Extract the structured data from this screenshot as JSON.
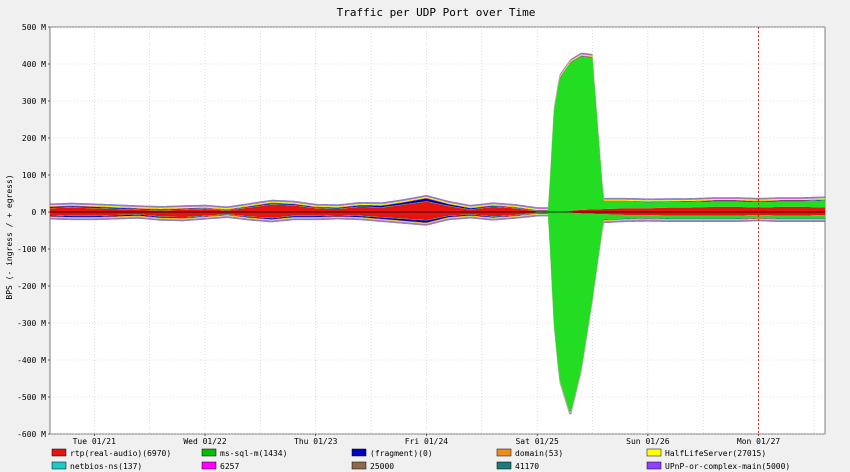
{
  "chart_data": {
    "type": "area",
    "title": "Traffic per UDP Port over Time",
    "ylabel": "BPS (- ingress / + egress)",
    "xlabel": "",
    "ylim": [
      -600,
      500
    ],
    "y_unit": "M",
    "y_ticks": [
      500,
      400,
      300,
      200,
      100,
      0,
      -100,
      -200,
      -300,
      -400,
      -500,
      -600
    ],
    "y_tick_labels": [
      "500 M",
      "400 M",
      "300 M",
      "200 M",
      "100 M",
      "0 M",
      "-100 M",
      "-200 M",
      "-300 M",
      "-400 M",
      "-500 M",
      "-600 M"
    ],
    "x_unit": "days",
    "xlim": [
      0,
      7
    ],
    "x_ticks": [
      {
        "x": 0.4,
        "label": "Tue 01/21"
      },
      {
        "x": 1.4,
        "label": "Wed 01/22"
      },
      {
        "x": 2.4,
        "label": "Thu 01/23"
      },
      {
        "x": 3.4,
        "label": "Fri 01/24"
      },
      {
        "x": 4.4,
        "label": "Sat 01/25"
      },
      {
        "x": 5.4,
        "label": "Sun 01/26"
      },
      {
        "x": 6.4,
        "label": "Mon 01/27"
      }
    ],
    "now_marker_x": 6.4,
    "grid": true,
    "legend_position": "bottom",
    "series": [
      {
        "name": "rtp(real-audio)(6970)",
        "color": "#e8120f",
        "x": [
          0,
          0.2,
          0.4,
          0.6,
          0.8,
          1.0,
          1.2,
          1.4,
          1.6,
          1.8,
          2.0,
          2.2,
          2.4,
          2.6,
          2.8,
          3.0,
          3.2,
          3.4,
          3.6,
          3.8,
          4.0,
          4.2,
          4.4,
          4.6,
          4.8,
          5.0,
          5.2,
          5.4,
          5.6,
          5.8,
          6.0,
          6.2,
          6.4,
          6.6,
          6.8,
          7.0
        ],
        "egress": [
          10,
          12,
          10,
          8,
          6,
          4,
          6,
          8,
          4,
          12,
          20,
          18,
          10,
          8,
          14,
          12,
          20,
          28,
          16,
          6,
          14,
          10,
          2,
          0,
          6,
          8,
          10,
          10,
          12,
          12,
          14,
          14,
          12,
          14,
          14,
          12
        ],
        "ingress": [
          -8,
          -10,
          -10,
          -8,
          -6,
          -12,
          -14,
          -10,
          -6,
          -12,
          -16,
          -10,
          -10,
          -8,
          -10,
          -14,
          -18,
          -22,
          -10,
          -6,
          -12,
          -8,
          -2,
          0,
          -4,
          -6,
          -8,
          -8,
          -10,
          -10,
          -10,
          -10,
          -8,
          -10,
          -10,
          -8
        ]
      },
      {
        "name": "ms-sql-m(1434)",
        "color": "#00c000",
        "x": [
          0,
          0.4,
          0.8,
          1.2,
          1.6,
          2.0,
          2.4,
          2.8,
          3.2,
          3.6,
          4.0,
          4.4,
          4.5,
          4.55,
          4.6,
          4.7,
          4.8,
          4.9,
          5.0,
          5.2,
          5.6,
          6.0,
          6.4,
          6.8,
          7.0
        ],
        "egress": [
          1,
          1,
          1,
          1,
          1,
          1,
          1,
          1,
          1,
          1,
          1,
          1,
          2,
          270,
          360,
          400,
          415,
          410,
          20,
          18,
          15,
          15,
          15,
          15,
          20
        ],
        "ingress": [
          -1,
          -1,
          -1,
          -1,
          -1,
          -1,
          -1,
          -1,
          -1,
          -1,
          -1,
          -1,
          -2,
          -300,
          -450,
          -545,
          -420,
          -230,
          -15,
          -10,
          -8,
          -8,
          -8,
          -8,
          -10
        ]
      },
      {
        "name": "(fragment)(0)",
        "color": "#0000c0",
        "x": [
          0,
          0.4,
          0.8,
          1.2,
          1.6,
          2.0,
          2.4,
          2.8,
          3.2,
          3.4,
          3.6,
          4.0,
          4.4,
          4.8,
          5.2,
          5.6,
          6.0,
          6.4,
          6.8,
          7.0
        ],
        "egress": [
          3,
          3,
          2,
          2,
          1,
          3,
          2,
          3,
          5,
          8,
          4,
          2,
          1,
          1,
          1,
          1,
          2,
          2,
          2,
          1
        ],
        "ingress": [
          -3,
          -3,
          -3,
          -2,
          -1,
          -3,
          -3,
          -3,
          -5,
          -6,
          -3,
          -2,
          -1,
          -1,
          -1,
          -1,
          -1,
          -1,
          -1,
          -1
        ]
      },
      {
        "name": "domain(53)",
        "color": "#f08c1c",
        "x": [
          0,
          1,
          2,
          3,
          4,
          5,
          6,
          7
        ],
        "egress": [
          2,
          2,
          2,
          2,
          2,
          2,
          2,
          2
        ],
        "ingress": [
          -2,
          -2,
          -2,
          -2,
          -2,
          -2,
          -2,
          -2
        ]
      },
      {
        "name": "HalfLifeServer(27015)",
        "color": "#ffff00",
        "x": [
          0,
          1,
          2,
          3,
          4,
          5,
          6,
          7
        ],
        "egress": [
          2,
          2,
          2,
          2,
          2,
          2,
          2,
          2
        ],
        "ingress": [
          -1,
          -1,
          -1,
          -1,
          -1,
          -1,
          -1,
          -1
        ]
      },
      {
        "name": "netbios-ns(137)",
        "color": "#20c8c8",
        "x": [
          0,
          1,
          2,
          3,
          4,
          5,
          6,
          7
        ],
        "egress": [
          1,
          1,
          1,
          1,
          1,
          1,
          1,
          1
        ],
        "ingress": [
          -1,
          -1,
          -1,
          -1,
          -1,
          -1,
          -1,
          -1
        ]
      },
      {
        "name": "6257",
        "color": "#ff00ff",
        "x": [
          0,
          1,
          2,
          3,
          4,
          5,
          6,
          7
        ],
        "egress": [
          1,
          1,
          1,
          1,
          1,
          1,
          1,
          1
        ],
        "ingress": [
          -1,
          -1,
          -1,
          -1,
          -1,
          -1,
          -1,
          -1
        ]
      },
      {
        "name": "25000",
        "color": "#8c6a4a",
        "x": [
          0,
          1,
          2,
          3,
          4,
          5,
          6,
          7
        ],
        "egress": [
          1,
          1,
          1,
          1,
          1,
          1,
          1,
          1
        ],
        "ingress": [
          -1,
          -1,
          -1,
          -1,
          -1,
          -1,
          -1,
          -1
        ]
      },
      {
        "name": "41170",
        "color": "#207878",
        "x": [
          0,
          1,
          2,
          3,
          4,
          5,
          6,
          7
        ],
        "egress": [
          1,
          1,
          1,
          1,
          1,
          1,
          1,
          1
        ],
        "ingress": [
          -1,
          -1,
          -1,
          -1,
          -1,
          -1,
          -1,
          -1
        ]
      },
      {
        "name": "UPnP-or-complex-main(5000)",
        "color": "#9040ff",
        "x": [
          0,
          1,
          2,
          3,
          4,
          5,
          6,
          7
        ],
        "egress": [
          1,
          1,
          1,
          1,
          1,
          1,
          1,
          1
        ],
        "ingress": [
          -1,
          -1,
          -1,
          -1,
          -1,
          -1,
          -1,
          -1
        ]
      }
    ]
  }
}
